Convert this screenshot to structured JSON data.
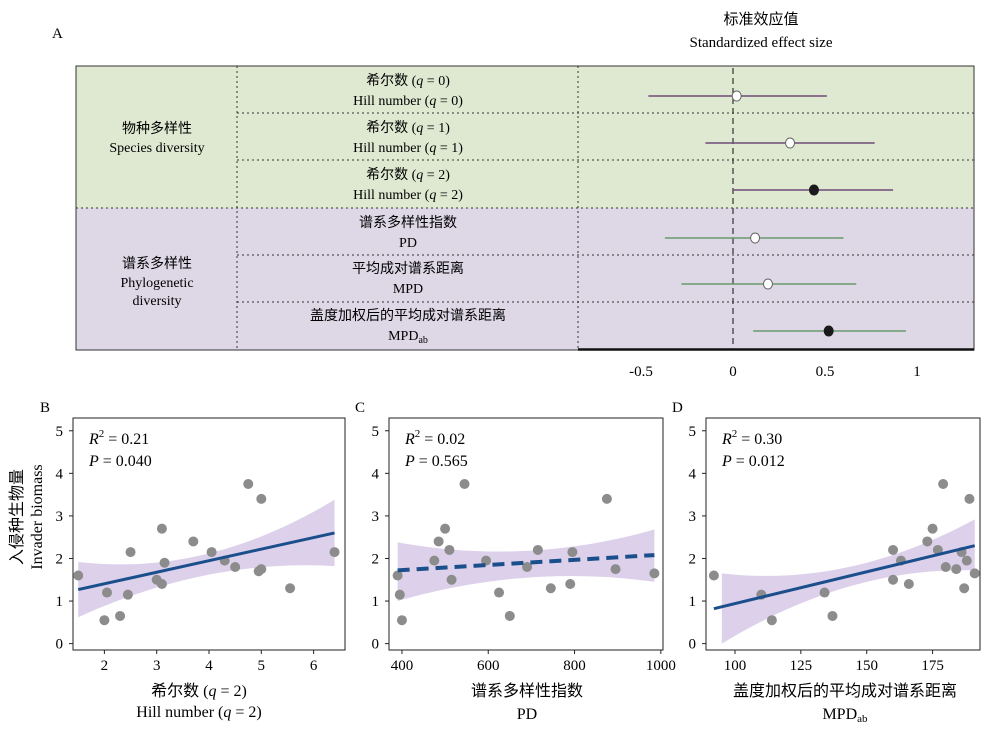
{
  "panel_a": {
    "label": "A",
    "header_cn": "标准效应值",
    "header_en": "Standardized  effect  size",
    "groups": [
      {
        "cn": "物种多样性",
        "en_lines": [
          "Species diversity"
        ]
      },
      {
        "cn": "谱系多样性",
        "en_lines": [
          "Phylogenetic",
          "diversity"
        ]
      }
    ]
  },
  "panel_b": {
    "label": "B",
    "r2_value": "= 0.21",
    "p_value": "= 0.040",
    "xlabel_cn": "希尔数",
    "xlabel_en": "Hill number",
    "xlabel_q": "(q = 2)"
  },
  "panel_c": {
    "label": "C",
    "r2_value": "= 0.02",
    "p_value": "= 0.565",
    "xlabel_cn": "谱系多样性指数",
    "xlabel_en": "PD"
  },
  "panel_d": {
    "label": "D",
    "r2_value": "= 0.30",
    "p_value": "= 0.012",
    "xlabel_cn": "盖度加权后的平均成对谱系距离",
    "xlabel_en": "MPD",
    "xlabel_sub": "ab"
  },
  "shared": {
    "ylabel_cn": "入侵种生物量",
    "ylabel_en": "Invader biomass",
    "r2_symbol": "R",
    "p_symbol": "P"
  },
  "colors": {
    "species_band": "#dfe8d1",
    "phylo_band": "#ddd7e6",
    "species_ci": "#6e4a78",
    "phylo_ci": "#6a9a6e",
    "significant_point": "#1a1a1a",
    "open_point": "#ffffff",
    "ci_ribbon": "#ddd0ea",
    "fit_line": "#1b4f8c",
    "scatter_point": "#8c8c8c"
  },
  "chart_data": [
    {
      "type": "forest",
      "panel": "A",
      "title": "Standardized effect size",
      "title_cn": "标准效应值",
      "xlim": [
        -0.55,
        1.3
      ],
      "xticks": [
        -0.5,
        0,
        0.5,
        1
      ],
      "xtick_labels": [
        "-0.5",
        "0",
        "0.5",
        "1"
      ],
      "reference_line": 0,
      "rows": [
        {
          "group": "species",
          "label_cn": "希尔数",
          "label_en": "Hill number",
          "q": "(q = 0)",
          "estimate": 0.02,
          "lower": -0.46,
          "upper": 0.51,
          "significant": false
        },
        {
          "group": "species",
          "label_cn": "希尔数",
          "label_en": "Hill number",
          "q": "(q = 1)",
          "estimate": 0.31,
          "lower": -0.15,
          "upper": 0.77,
          "significant": false
        },
        {
          "group": "species",
          "label_cn": "希尔数",
          "label_en": "Hill number",
          "q": "(q = 2)",
          "estimate": 0.44,
          "lower": 0.0,
          "upper": 0.87,
          "significant": true
        },
        {
          "group": "phylo",
          "label_cn": "谱系多样性指数",
          "label_en": "PD",
          "estimate": 0.12,
          "lower": -0.37,
          "upper": 0.6,
          "significant": false
        },
        {
          "group": "phylo",
          "label_cn": "平均成对谱系距离",
          "label_en": "MPD",
          "estimate": 0.19,
          "lower": -0.28,
          "upper": 0.67,
          "significant": false
        },
        {
          "group": "phylo",
          "label_cn": "盖度加权后的平均成对谱系距离",
          "label_en": "MPD",
          "label_sub": "ab",
          "estimate": 0.52,
          "lower": 0.11,
          "upper": 0.94,
          "significant": true
        }
      ]
    },
    {
      "type": "scatter",
      "panel": "B",
      "xlim": [
        1.4,
        6.6
      ],
      "ylim": [
        -0.15,
        5.3
      ],
      "xticks": [
        2,
        3,
        4,
        5,
        6
      ],
      "yticks": [
        0,
        1,
        2,
        3,
        4,
        5
      ],
      "points": [
        [
          1.5,
          1.6
        ],
        [
          2.0,
          0.55
        ],
        [
          2.05,
          1.2
        ],
        [
          2.3,
          0.65
        ],
        [
          2.45,
          1.15
        ],
        [
          2.5,
          2.15
        ],
        [
          3.0,
          1.5
        ],
        [
          3.1,
          1.4
        ],
        [
          3.1,
          2.7
        ],
        [
          3.15,
          1.9
        ],
        [
          3.7,
          2.4
        ],
        [
          4.05,
          2.15
        ],
        [
          4.3,
          1.95
        ],
        [
          4.5,
          1.8
        ],
        [
          4.75,
          3.75
        ],
        [
          4.95,
          1.7
        ],
        [
          5.0,
          1.75
        ],
        [
          5.0,
          3.4
        ],
        [
          5.55,
          1.3
        ],
        [
          6.4,
          2.15
        ]
      ],
      "fit": {
        "x": [
          1.5,
          6.4
        ],
        "y": [
          1.27,
          2.6
        ],
        "style": "solid"
      },
      "ci": {
        "x": [
          1.5,
          4.0,
          6.4
        ],
        "lower": [
          0.62,
          1.62,
          1.82
        ],
        "upper": [
          1.92,
          2.12,
          3.38
        ]
      }
    },
    {
      "type": "scatter",
      "panel": "C",
      "xlim": [
        370,
        1005
      ],
      "ylim": [
        -0.15,
        5.3
      ],
      "xticks": [
        400,
        600,
        800,
        1000
      ],
      "yticks": [
        0,
        1,
        2,
        3,
        4,
        5
      ],
      "points": [
        [
          390,
          1.6
        ],
        [
          395,
          1.15
        ],
        [
          400,
          0.55
        ],
        [
          475,
          1.95
        ],
        [
          485,
          2.4
        ],
        [
          500,
          2.7
        ],
        [
          510,
          2.2
        ],
        [
          515,
          1.5
        ],
        [
          545,
          3.75
        ],
        [
          595,
          1.95
        ],
        [
          625,
          1.2
        ],
        [
          650,
          0.65
        ],
        [
          690,
          1.8
        ],
        [
          715,
          2.2
        ],
        [
          745,
          1.3
        ],
        [
          790,
          1.4
        ],
        [
          795,
          2.15
        ],
        [
          875,
          3.4
        ],
        [
          895,
          1.75
        ],
        [
          985,
          1.65
        ]
      ],
      "fit": {
        "x": [
          390,
          985
        ],
        "y": [
          1.72,
          2.08
        ],
        "style": "dashed"
      },
      "ci": {
        "x": [
          390,
          690,
          985
        ],
        "lower": [
          1.0,
          1.55,
          1.45
        ],
        "upper": [
          2.38,
          2.18,
          2.68
        ]
      }
    },
    {
      "type": "scatter",
      "panel": "D",
      "xlim": [
        89,
        193
      ],
      "ylim": [
        -0.15,
        5.3
      ],
      "xticks": [
        100,
        125,
        150,
        175
      ],
      "yticks": [
        0,
        1,
        2,
        3,
        4,
        5
      ],
      "points": [
        [
          92,
          1.6
        ],
        [
          110,
          1.15
        ],
        [
          114,
          0.55
        ],
        [
          134,
          1.2
        ],
        [
          137,
          0.65
        ],
        [
          160,
          1.5
        ],
        [
          160,
          2.2
        ],
        [
          163,
          1.95
        ],
        [
          166,
          1.4
        ],
        [
          173,
          2.4
        ],
        [
          175,
          2.7
        ],
        [
          177,
          2.2
        ],
        [
          179,
          3.75
        ],
        [
          180,
          1.8
        ],
        [
          184,
          1.75
        ],
        [
          186,
          2.15
        ],
        [
          187,
          1.3
        ],
        [
          188,
          1.95
        ],
        [
          189,
          3.4
        ],
        [
          191,
          1.65
        ]
      ],
      "fit": {
        "x": [
          92,
          191
        ],
        "y": [
          0.82,
          2.3
        ],
        "style": "solid"
      },
      "ci": {
        "x": [
          95,
          150,
          191
        ],
        "lower": [
          0.0,
          1.45,
          1.72
        ],
        "upper": [
          1.65,
          1.9,
          2.92
        ]
      }
    }
  ]
}
